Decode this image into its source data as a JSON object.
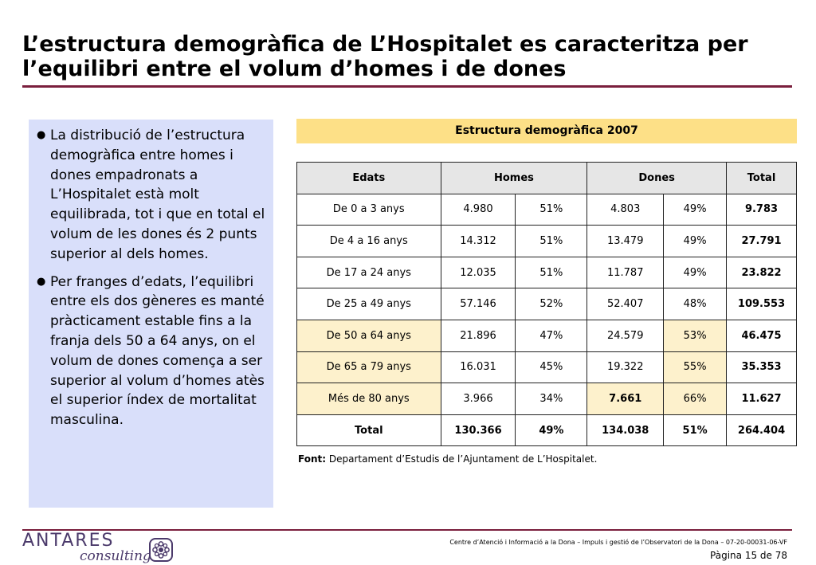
{
  "title": "L’estructura demogràfica de L’Hospitalet es caracteritza per l’equilibri entre el volum d’homes i de dones",
  "bullets": [
    "La distribució de l’estructura demogràfica entre homes i dones empadronats a L’Hospitalet està molt equilibrada, tot i que en total el volum de les dones és 2 punts superior al dels homes.",
    "Per franges d’edats, l’equilibri entre els dos gèneres es manté pràcticament estable fins a la franja dels 50 a 64 anys, on el volum de dones comença a ser superior al volum d’homes atès el superior índex de mortalitat masculina."
  ],
  "table": {
    "title": "Estructura demogràfica 2007",
    "headers": [
      "Edats",
      "Homes",
      "Dones",
      "Total"
    ],
    "rows": [
      {
        "edat": "De 0 a 3 anys",
        "homes": "4.980",
        "homes_pct": "51%",
        "dones": "4.803",
        "dones_pct": "49%",
        "total": "9.783"
      },
      {
        "edat": "De 4 a 16 anys",
        "homes": "14.312",
        "homes_pct": "51%",
        "dones": "13.479",
        "dones_pct": "49%",
        "total": "27.791"
      },
      {
        "edat": "De 17 a 24 anys",
        "homes": "12.035",
        "homes_pct": "51%",
        "dones": "11.787",
        "dones_pct": "49%",
        "total": "23.822"
      },
      {
        "edat": "De 25 a 49 anys",
        "homes": "57.146",
        "homes_pct": "52%",
        "dones": "52.407",
        "dones_pct": "48%",
        "total": "109.553"
      },
      {
        "edat": "De 50 a 64 anys",
        "homes": "21.896",
        "homes_pct": "47%",
        "dones": "24.579",
        "dones_pct": "53%",
        "total": "46.475"
      },
      {
        "edat": "De 65 a 79 anys",
        "homes": "16.031",
        "homes_pct": "45%",
        "dones": "19.322",
        "dones_pct": "55%",
        "total": "35.353"
      },
      {
        "edat": "Més de 80 anys",
        "homes": "3.966",
        "homes_pct": "34%",
        "dones": "7.661",
        "dones_pct": "66%",
        "total": "11.627"
      },
      {
        "edat": "Total",
        "homes": "130.366",
        "homes_pct": "49%",
        "dones": "134.038",
        "dones_pct": "51%",
        "total": "264.404"
      }
    ]
  },
  "source": {
    "label": "Font:",
    "text": " Departament d’Estudis de l’Ajuntament de L’Hospitalet."
  },
  "footer": {
    "logo_main": "ANTARES",
    "logo_sub": "consulting",
    "line": "Centre d’Atenció i Informació a la Dona – Impuls i gestió de l’Observatori de la Dona – 07-20-00031-06-VF",
    "page": "Pàgina 15 de 78"
  },
  "colors": {
    "accent": "#7a1f3d",
    "bullet_panel": "#d9dffa",
    "table_title_bg": "#fde087",
    "highlight": "#fdf1cc",
    "header_bg": "#e6e6e6"
  }
}
